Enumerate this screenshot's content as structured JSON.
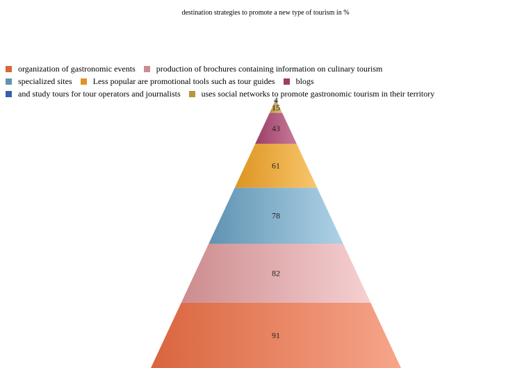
{
  "chart_data": {
    "type": "pyramid",
    "title": "destination strategies to promote a new type of tourism in %",
    "series": [
      {
        "name": "organization of gastronomic events",
        "value": 91,
        "color": "#d9653e",
        "color_light": "#f7a58a"
      },
      {
        "name": "production of brochures containing information on culinary tourism",
        "value": 82,
        "color": "#cc8c8e",
        "color_light": "#f6d0d2"
      },
      {
        "name": "specialized sites",
        "value": 78,
        "color": "#5f93b2",
        "color_light": "#aed2e6"
      },
      {
        "name": "Less popular are promotional tools such as tour guides",
        "value": 61,
        "color": "#de9421",
        "color_light": "#f7c66c"
      },
      {
        "name": "blogs",
        "value": 43,
        "color": "#9c3f67",
        "color_light": "#c87a9a"
      },
      {
        "name": "uses social networks to promote gastronomic tourism in their territory",
        "value": 15,
        "color": "#b8953f",
        "color_light": "#dcc07a"
      },
      {
        "name": "and study tours for tour operators and journalists",
        "value": 4,
        "color": "#3a5fa8",
        "color_light": "#6f8fd0"
      }
    ],
    "legend_position": "top",
    "legend_rows": [
      [
        0,
        1
      ],
      [
        2,
        3,
        4
      ],
      [
        6,
        5
      ]
    ]
  }
}
